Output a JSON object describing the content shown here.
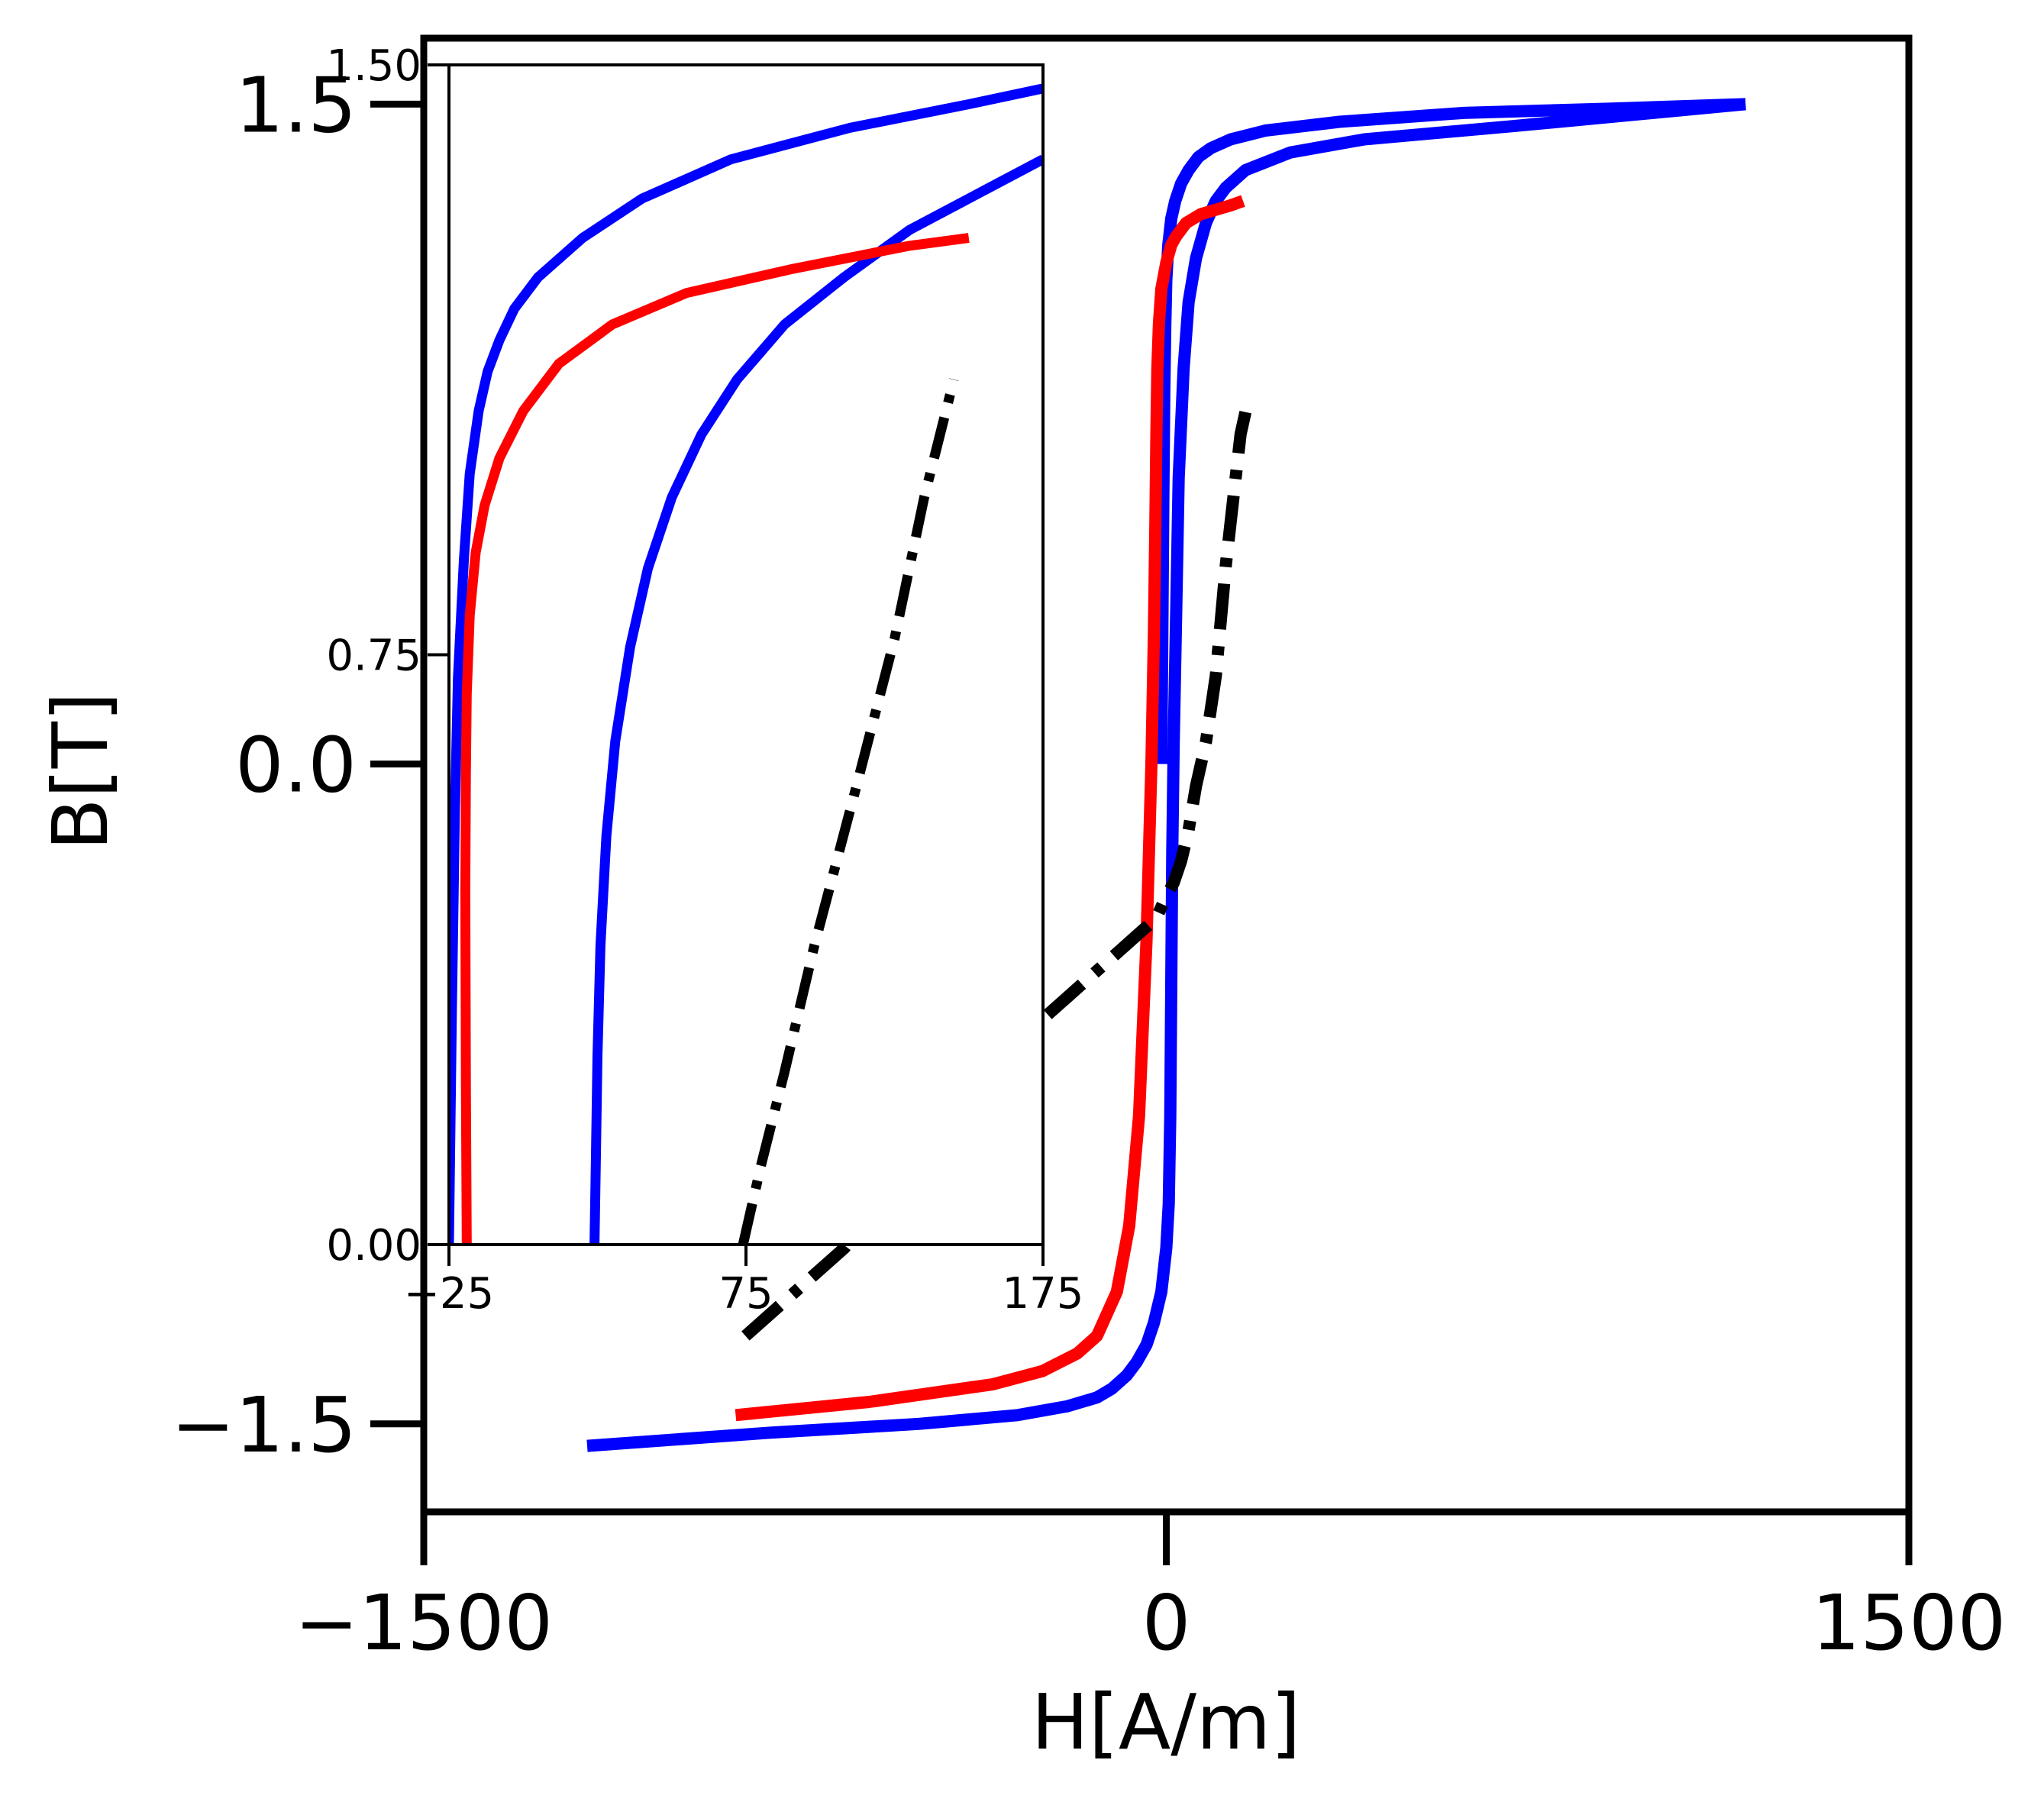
{
  "chart_data": [
    {
      "id": "main",
      "type": "line",
      "title": "",
      "xlabel": "H[A/m]",
      "ylabel": "B[T]",
      "xlim": [
        -1500,
        1500
      ],
      "ylim": [
        -1.7,
        1.65
      ],
      "xticks": [
        -1500,
        0,
        1500
      ],
      "xtick_labels": [
        "−1500",
        "0",
        "1500"
      ],
      "yticks": [
        -1.5,
        0.0,
        1.5
      ],
      "ytick_labels": [
        "−1.5",
        "0.0",
        "1.5"
      ],
      "grid": false,
      "legend": "none",
      "series": [
        {
          "color": "#0000ff",
          "style": "solid",
          "x": [
            1170,
            700,
            400,
            250,
            160,
            120,
            100,
            80,
            60,
            45,
            35,
            25,
            20,
            15,
            12,
            10,
            8,
            5,
            0,
            -10,
            -25,
            -40,
            -60,
            -80,
            -110,
            -140,
            -200,
            -300,
            -500,
            -800,
            -1170
          ],
          "y": [
            1.5,
            1.45,
            1.42,
            1.39,
            1.35,
            1.31,
            1.28,
            1.23,
            1.15,
            1.05,
            0.9,
            0.65,
            0.35,
            0.05,
            -0.2,
            -0.5,
            -0.8,
            -1.0,
            -1.1,
            -1.2,
            -1.27,
            -1.32,
            -1.36,
            -1.39,
            -1.42,
            -1.44,
            -1.46,
            -1.48,
            -1.5,
            -1.52,
            -1.55
          ]
        },
        {
          "color": "#0000ff",
          "style": "solid",
          "x": [
            -10,
            -8,
            -6,
            -4,
            -2,
            0,
            4,
            10,
            18,
            30,
            45,
            65,
            90,
            130,
            200,
            350,
            600,
            900,
            1170
          ],
          "y": [
            0.0,
            0.3,
            0.6,
            0.85,
            1.0,
            1.1,
            1.18,
            1.24,
            1.28,
            1.32,
            1.35,
            1.38,
            1.4,
            1.42,
            1.44,
            1.46,
            1.48,
            1.49,
            1.5
          ]
        },
        {
          "color": "#ff0000",
          "style": "solid",
          "x": [
            -870,
            -600,
            -350,
            -250,
            -180,
            -140,
            -100,
            -75,
            -55,
            -40,
            -30,
            -25,
            -22,
            -20,
            -18,
            -15,
            -10,
            0,
            10,
            20,
            40,
            70,
            100,
            130,
            155
          ],
          "y": [
            -1.48,
            -1.45,
            -1.41,
            -1.38,
            -1.34,
            -1.3,
            -1.2,
            -1.05,
            -0.8,
            -0.4,
            0.0,
            0.3,
            0.55,
            0.75,
            0.9,
            1.0,
            1.08,
            1.14,
            1.18,
            1.2,
            1.23,
            1.25,
            1.26,
            1.27,
            1.28
          ]
        },
        {
          "color": "#000000",
          "style": "dashdot",
          "x": [
            -850,
            -650,
            -450,
            -300,
            -220,
            -150,
            -90,
            -50,
            -20,
            0,
            15,
            30,
            45,
            60,
            80,
            100,
            120,
            135,
            150,
            160
          ],
          "y": [
            -1.3,
            -1.1,
            -0.8,
            -0.63,
            -0.55,
            -0.48,
            -0.42,
            -0.38,
            -0.35,
            -0.3,
            -0.27,
            -0.22,
            -0.15,
            -0.05,
            0.05,
            0.2,
            0.45,
            0.6,
            0.75,
            0.8
          ]
        }
      ]
    },
    {
      "id": "inset",
      "type": "line",
      "xlim": [
        -25,
        175
      ],
      "ylim": [
        0.0,
        1.5
      ],
      "xticks": [
        -25,
        75,
        175
      ],
      "xtick_labels": [
        "−25",
        "75",
        "175"
      ],
      "yticks": [
        0.0,
        0.75,
        1.5
      ],
      "ytick_labels": [
        "0.00",
        "0.75",
        "1.50"
      ],
      "grid": false,
      "series": [
        {
          "color": "#0000ff",
          "style": "solid",
          "x": [
            -25,
            -24,
            -23,
            -22,
            -20,
            -18,
            -15,
            -12,
            -8,
            -3,
            5,
            20,
            40,
            70,
            110,
            150,
            175
          ],
          "y": [
            0.0,
            0.3,
            0.55,
            0.72,
            0.87,
            0.98,
            1.06,
            1.11,
            1.15,
            1.19,
            1.23,
            1.28,
            1.33,
            1.38,
            1.42,
            1.45,
            1.47
          ]
        },
        {
          "color": "#0000ff",
          "style": "solid",
          "x": [
            24,
            24.5,
            25,
            26,
            28,
            31,
            36,
            42,
            50,
            60,
            72,
            88,
            108,
            130,
            155,
            175
          ],
          "y": [
            0.0,
            0.12,
            0.24,
            0.38,
            0.52,
            0.64,
            0.76,
            0.86,
            0.95,
            1.03,
            1.1,
            1.17,
            1.23,
            1.29,
            1.34,
            1.38
          ]
        },
        {
          "color": "#ff0000",
          "style": "solid",
          "x": [
            -19,
            -19.3,
            -19.5,
            -19.3,
            -19,
            -18,
            -16,
            -13,
            -8,
            0,
            12,
            30,
            55,
            90,
            130,
            150
          ],
          "y": [
            0.0,
            0.2,
            0.45,
            0.6,
            0.7,
            0.8,
            0.88,
            0.94,
            1.0,
            1.06,
            1.12,
            1.17,
            1.21,
            1.24,
            1.27,
            1.28
          ]
        },
        {
          "color": "#000000",
          "style": "dashdot",
          "x": [
            74,
            80,
            88,
            98,
            112,
            125,
            135,
            145
          ],
          "y": [
            0.0,
            0.1,
            0.22,
            0.38,
            0.58,
            0.77,
            0.95,
            1.1
          ]
        }
      ]
    }
  ]
}
